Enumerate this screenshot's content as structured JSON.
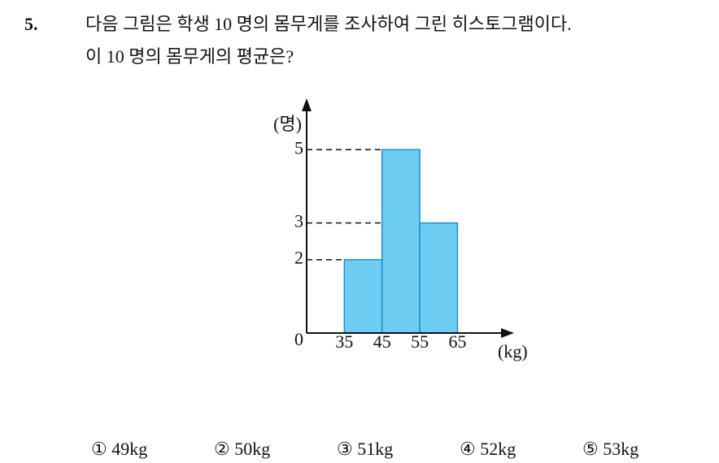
{
  "problem": {
    "number": "5.",
    "lines": [
      "다음 그림은 학생 10 명의 몸무게를 조사하여 그린 히스토그램이다.",
      "이 10 명의 몸무게의 평균은?"
    ]
  },
  "chart_data": {
    "type": "histogram",
    "bins": [
      35,
      45,
      55,
      65
    ],
    "counts": [
      2,
      5,
      3
    ],
    "color": "#6dcdf3",
    "edge_color": "#1b8fcc",
    "xlabel": "(kg)",
    "ylabel": "(명)",
    "xlim": [
      25,
      80
    ],
    "ylim": [
      0,
      6.4
    ],
    "xticks": [
      35,
      45,
      55,
      65
    ],
    "yticks": [
      0,
      2,
      3,
      5
    ],
    "dashed_guides": true
  },
  "choices": [
    "① 49kg",
    "② 50kg",
    "③ 51kg",
    "④ 52kg",
    "⑤ 53kg"
  ]
}
